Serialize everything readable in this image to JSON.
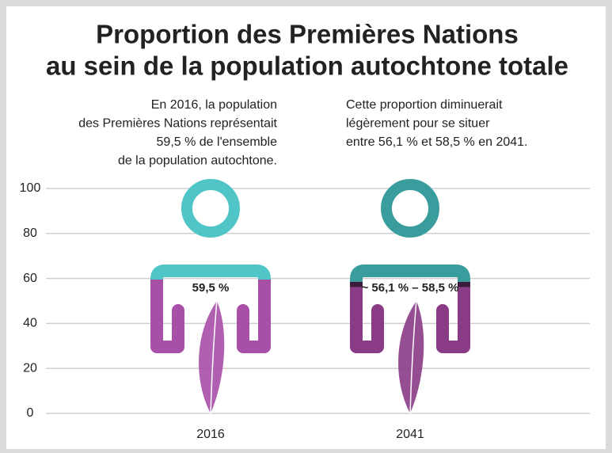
{
  "chart_data": {
    "type": "pictograph",
    "title": [
      "Proportion des Premières Nations",
      "au sein de la population autochtone totale"
    ],
    "annotations": [
      [
        "En 2016, la population",
        "des Premières Nations représentait",
        "59,5 % de l'ensemble",
        "de la population autochtone."
      ],
      [
        "Cette proportion diminuerait",
        "légèrement pour se situer",
        "entre 56,1 % et 58,5 % en 2041."
      ]
    ],
    "categories": [
      "2016",
      "2041"
    ],
    "values": [
      59.5,
      56.1
    ],
    "high": [
      null,
      58.5
    ],
    "value_labels": [
      "59,5 %",
      "~ 56,1 % – 58,5 %"
    ],
    "ylim": [
      0,
      100
    ],
    "yticks": [
      0,
      20,
      40,
      60,
      80,
      100
    ],
    "grid": true,
    "fill_colors": [
      "#a84fa8",
      "#8a3b86"
    ],
    "top_colors": [
      "#4fc5c7",
      "#3a9d9d"
    ],
    "band_color": "#3b1b3b"
  }
}
